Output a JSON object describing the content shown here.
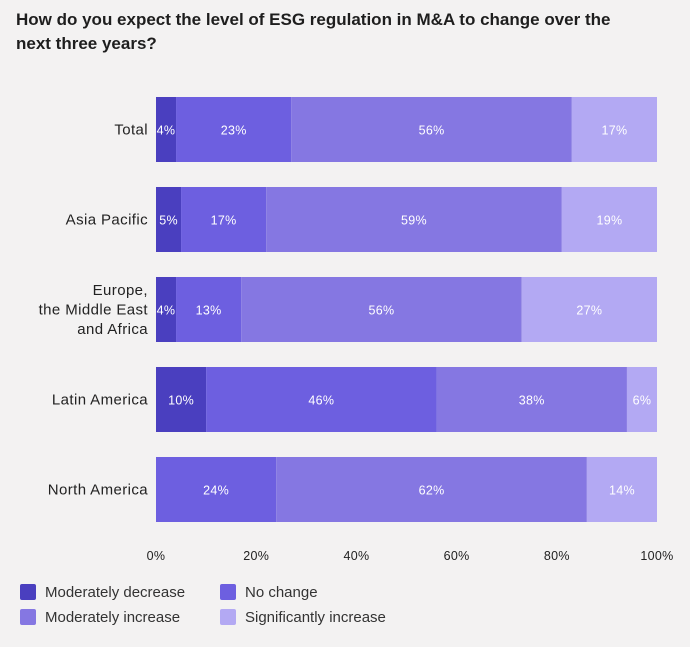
{
  "chart_data": {
    "type": "bar",
    "orientation": "horizontal",
    "stacked": true,
    "title": "How do you expect the level of ESG regulation in M&A to change over the next three years?",
    "categories": [
      [
        "Total"
      ],
      [
        "Asia Pacific"
      ],
      [
        "Europe,",
        "the Middle East",
        "and Africa"
      ],
      [
        "Latin America"
      ],
      [
        "North America"
      ]
    ],
    "series": [
      {
        "name": "Moderately decrease",
        "color": "#4a3fbf",
        "values": [
          4,
          5,
          4,
          10,
          0
        ]
      },
      {
        "name": "No change",
        "color": "#6d5fe0",
        "values": [
          23,
          17,
          13,
          46,
          24
        ]
      },
      {
        "name": "Moderately increase",
        "color": "#8577e2",
        "values": [
          56,
          59,
          56,
          38,
          62
        ]
      },
      {
        "name": "Significantly increase",
        "color": "#b3a9f3",
        "values": [
          17,
          19,
          27,
          6,
          14
        ]
      }
    ],
    "xlim": [
      0,
      100
    ],
    "xticks": [
      0,
      20,
      40,
      60,
      80,
      100
    ],
    "tick_suffix": "%",
    "label_suffix": "%",
    "legend_position": "bottom-left"
  }
}
